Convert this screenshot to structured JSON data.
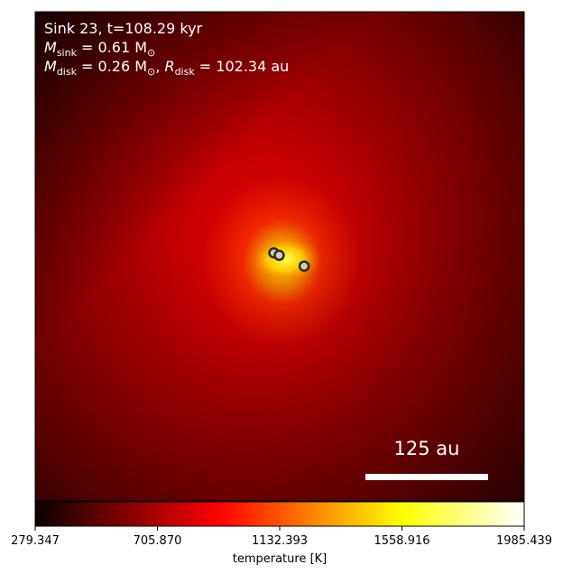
{
  "chart_data": {
    "type": "heatmap",
    "annotations": {
      "line1": "Sink 23, t=108.29 kyr",
      "line2_symbol": "M",
      "line2_sub": "sink",
      "line2_rest": " = 0.61 M",
      "line2_sun": "⊙",
      "line3_symbol": "M",
      "line3_sub": "disk",
      "line3_mid": " = 0.26 M",
      "line3_sun": "⊙",
      "line3_comma": ", ",
      "line3_r": "R",
      "line3_rsub": "disk",
      "line3_rest": " = 102.34 au"
    },
    "scalebar": {
      "label": "125 au",
      "length_au": 125
    },
    "colorbar": {
      "label": "temperature [K]",
      "vmin": 279.347,
      "vmax": 1985.439,
      "ticks": [
        "279.347",
        "705.870",
        "1132.393",
        "1558.916",
        "1985.439"
      ],
      "tick_values": [
        279.347,
        705.87,
        1132.393,
        1558.916,
        1985.439
      ],
      "colormap": "hot"
    },
    "sinks": [
      {
        "name": "sink-a",
        "x_frac": 0.488,
        "y_frac": 0.493
      },
      {
        "name": "sink-b",
        "x_frac": 0.499,
        "y_frac": 0.498
      },
      {
        "name": "sink-c",
        "x_frac": 0.55,
        "y_frac": 0.52
      }
    ],
    "colors": {
      "background_dark": "#1a0000",
      "hot_mid": "#ff0000",
      "hot_peak": "#ffff40",
      "scalebar": "#ffffff",
      "text": "#ffffff"
    }
  }
}
